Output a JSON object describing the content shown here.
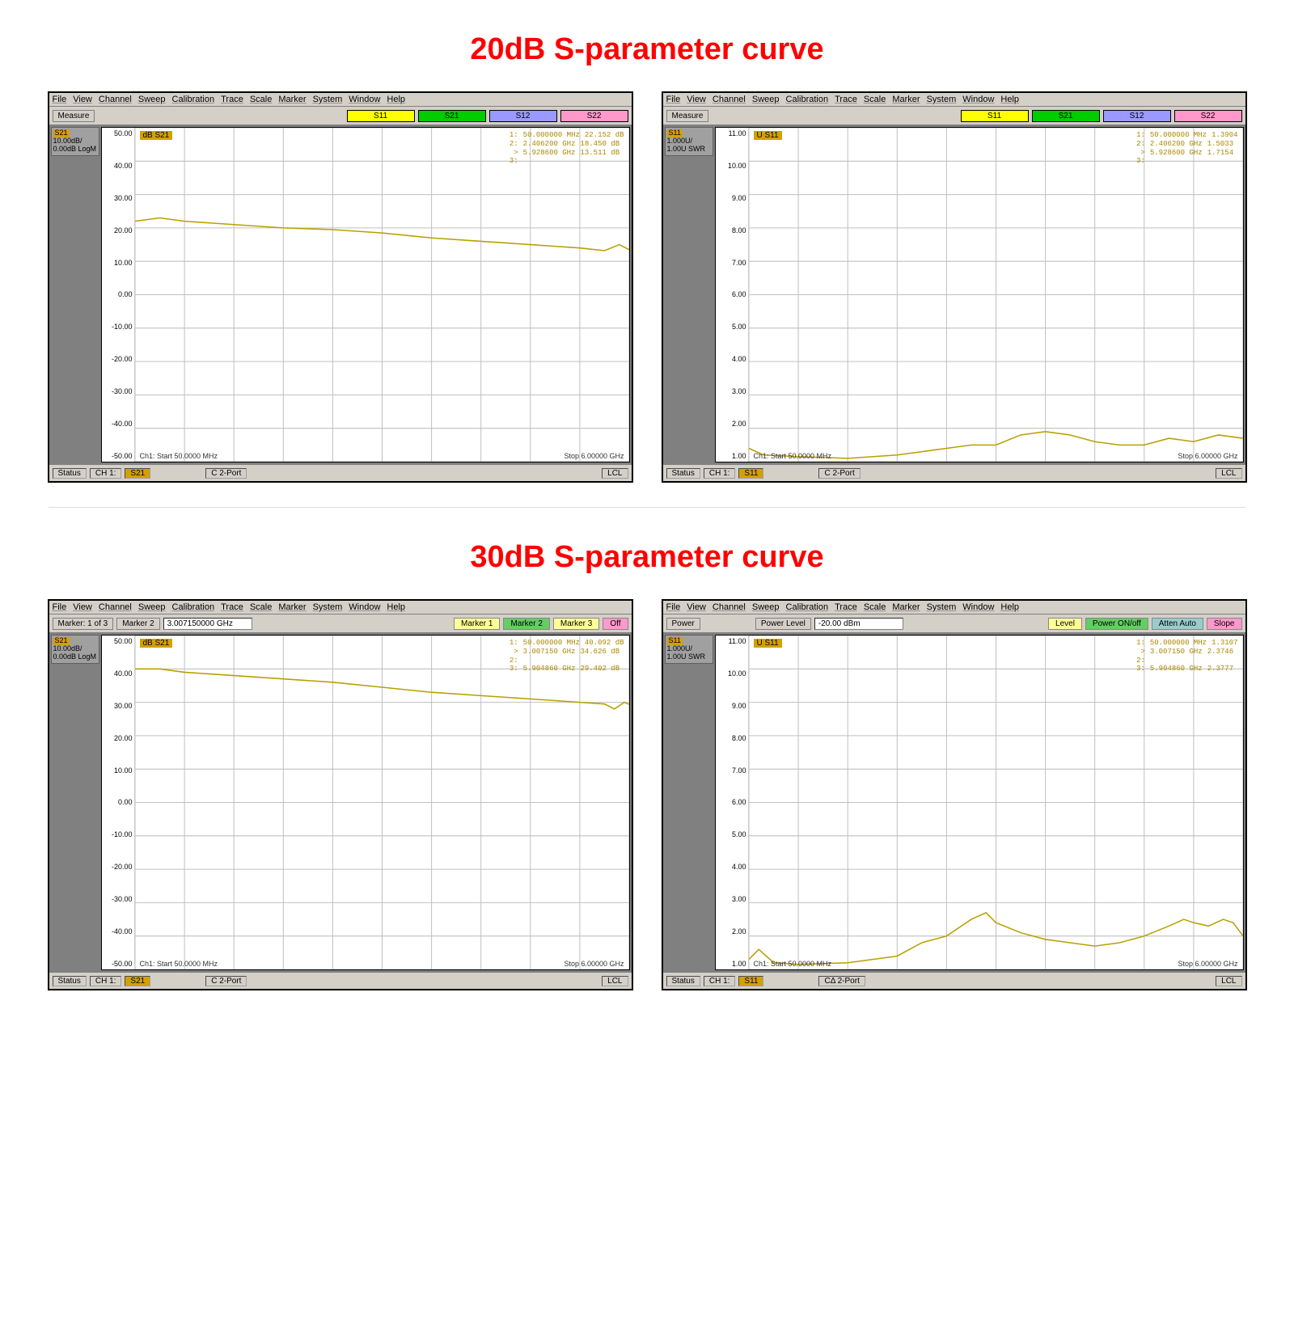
{
  "titles": {
    "section1": "20dB S-parameter curve",
    "section2": "30dB S-parameter curve"
  },
  "menu_items": [
    "File",
    "View",
    "Channel",
    "Sweep",
    "Calibration",
    "Trace",
    "Scale",
    "Marker",
    "System",
    "Window",
    "Help"
  ],
  "sparam_buttons": {
    "s11": "S11",
    "s21": "S21",
    "s12": "S12",
    "s22": "S22"
  },
  "colors": {
    "title": "#ff0000",
    "trace": "#b8a000",
    "grid": "#c0c0c0",
    "bg_window": "#c0c0c0",
    "bg_panel": "#808080",
    "s11": "#ffff00",
    "s21": "#00cc00",
    "s12": "#9999ff",
    "s22": "#ff99cc"
  },
  "panels": [
    {
      "id": "p1",
      "toolbar": {
        "type": "measure",
        "label": "Measure"
      },
      "trace_box": {
        "hdr": "S21",
        "l1": "10.00dB/",
        "l2": "0.00dB   LogM"
      },
      "plot_label": "dB S21",
      "y_ticks": [
        "50.00",
        "40.00",
        "30.00",
        "20.00",
        "10.00",
        "0.00",
        "-10.00",
        "-20.00",
        "-30.00",
        "-40.00",
        "-50.00"
      ],
      "ylim": [
        -50,
        50
      ],
      "x_start": "Ch1: Start  50.0000 MHz",
      "x_stop": "Stop  6.00000 GHz",
      "markers": [
        {
          "n": "1:",
          "f": "50.000000 MHz",
          "v": "22.152 dB"
        },
        {
          "n": "2:",
          "f": "2.406200 GHz",
          "v": "18.450 dB"
        },
        {
          "n": "> 3:",
          "f": "5.928600 GHz",
          "v": "13.511 dB"
        }
      ],
      "curve": [
        [
          0,
          22
        ],
        [
          0.05,
          23
        ],
        [
          0.1,
          22
        ],
        [
          0.2,
          21
        ],
        [
          0.3,
          20
        ],
        [
          0.4,
          19.5
        ],
        [
          0.5,
          18.5
        ],
        [
          0.6,
          17
        ],
        [
          0.7,
          16
        ],
        [
          0.8,
          15
        ],
        [
          0.85,
          14.5
        ],
        [
          0.9,
          14
        ],
        [
          0.95,
          13.2
        ],
        [
          0.98,
          15
        ],
        [
          1.0,
          13.5
        ]
      ],
      "status": {
        "ch": "CH 1:",
        "trace": "S21",
        "port": "C  2-Port",
        "lcl": "LCL"
      }
    },
    {
      "id": "p2",
      "toolbar": {
        "type": "measure",
        "label": "Measure"
      },
      "trace_box": {
        "hdr": "S11",
        "l1": "1.000U/",
        "l2": "1.00U   SWR"
      },
      "plot_label": "U S11",
      "y_ticks": [
        "11.00",
        "10.00",
        "9.00",
        "8.00",
        "7.00",
        "6.00",
        "5.00",
        "4.00",
        "3.00",
        "2.00",
        "1.00"
      ],
      "ylim": [
        1,
        11
      ],
      "x_start": "Ch1: Start  50.0000 MHz",
      "x_stop": "Stop  6.00000 GHz",
      "markers": [
        {
          "n": "1:",
          "f": "50.000000 MHz",
          "v": "1.3904"
        },
        {
          "n": "2:",
          "f": "2.406200 GHz",
          "v": "1.5033"
        },
        {
          "n": "> 3:",
          "f": "5.928600 GHz",
          "v": "1.7154"
        }
      ],
      "curve": [
        [
          0,
          1.4
        ],
        [
          0.03,
          1.2
        ],
        [
          0.1,
          1.15
        ],
        [
          0.2,
          1.1
        ],
        [
          0.3,
          1.2
        ],
        [
          0.35,
          1.3
        ],
        [
          0.4,
          1.4
        ],
        [
          0.45,
          1.5
        ],
        [
          0.5,
          1.5
        ],
        [
          0.55,
          1.8
        ],
        [
          0.6,
          1.9
        ],
        [
          0.65,
          1.8
        ],
        [
          0.7,
          1.6
        ],
        [
          0.75,
          1.5
        ],
        [
          0.8,
          1.5
        ],
        [
          0.85,
          1.7
        ],
        [
          0.9,
          1.6
        ],
        [
          0.95,
          1.8
        ],
        [
          1.0,
          1.7
        ]
      ],
      "status": {
        "ch": "CH 1:",
        "trace": "S11",
        "port": "C  2-Port",
        "lcl": "LCL"
      }
    },
    {
      "id": "p3",
      "toolbar": {
        "type": "marker",
        "label": "Marker: 1 of 3",
        "label2": "Marker 2",
        "input": "3.007150000 GHz",
        "btns": [
          "Marker 1",
          "Marker 2",
          "Marker 3",
          "Off"
        ]
      },
      "trace_box": {
        "hdr": "S21",
        "l1": "10.00dB/",
        "l2": "0.00dB   LogM"
      },
      "plot_label": "dB S21",
      "y_ticks": [
        "50.00",
        "40.00",
        "30.00",
        "20.00",
        "10.00",
        "0.00",
        "-10.00",
        "-20.00",
        "-30.00",
        "-40.00",
        "-50.00"
      ],
      "ylim": [
        -50,
        50
      ],
      "x_start": "Ch1: Start  50.0000 MHz",
      "x_stop": "Stop  6.00000 GHz",
      "markers": [
        {
          "n": "1:",
          "f": "50.000000 MHz",
          "v": "40.092 dB"
        },
        {
          "n": "> 2:",
          "f": "3.007150 GHz",
          "v": "34.626 dB"
        },
        {
          "n": "3:",
          "f": "5.904860 GHz",
          "v": "29.402 dB"
        }
      ],
      "curve": [
        [
          0,
          40
        ],
        [
          0.05,
          40
        ],
        [
          0.1,
          39
        ],
        [
          0.2,
          38
        ],
        [
          0.3,
          37
        ],
        [
          0.4,
          36
        ],
        [
          0.5,
          34.5
        ],
        [
          0.6,
          33
        ],
        [
          0.7,
          32
        ],
        [
          0.8,
          31
        ],
        [
          0.85,
          30.5
        ],
        [
          0.9,
          30
        ],
        [
          0.95,
          29.5
        ],
        [
          0.97,
          28
        ],
        [
          0.99,
          30
        ],
        [
          1.0,
          29.4
        ]
      ],
      "status": {
        "ch": "CH 1:",
        "trace": "S21",
        "port": "C  2-Port",
        "lcl": "LCL"
      }
    },
    {
      "id": "p4",
      "toolbar": {
        "type": "power",
        "label": "Power",
        "label2": "Power Level",
        "input": "-20.00 dBm",
        "btns": [
          "Level",
          "Power ON/off",
          "Atten Auto",
          "Slope"
        ]
      },
      "trace_box": {
        "hdr": "S11",
        "l1": "1.000U/",
        "l2": "1.00U   SWR"
      },
      "plot_label": "U S11",
      "y_ticks": [
        "11.00",
        "10.00",
        "9.00",
        "8.00",
        "7.00",
        "6.00",
        "5.00",
        "4.00",
        "3.00",
        "2.00",
        "1.00"
      ],
      "ylim": [
        1,
        11
      ],
      "x_start": "Ch1: Start  50.0000 MHz",
      "x_stop": "Stop  6.00000 GHz",
      "markers": [
        {
          "n": "1:",
          "f": "50.000000 MHz",
          "v": "1.3107"
        },
        {
          "n": "> 2:",
          "f": "3.007150 GHz",
          "v": "2.3746"
        },
        {
          "n": "3:",
          "f": "5.904860 GHz",
          "v": "2.3777"
        }
      ],
      "curve": [
        [
          0,
          1.3
        ],
        [
          0.02,
          1.6
        ],
        [
          0.05,
          1.2
        ],
        [
          0.1,
          1.15
        ],
        [
          0.2,
          1.2
        ],
        [
          0.3,
          1.4
        ],
        [
          0.35,
          1.8
        ],
        [
          0.4,
          2.0
        ],
        [
          0.45,
          2.5
        ],
        [
          0.48,
          2.7
        ],
        [
          0.5,
          2.4
        ],
        [
          0.55,
          2.1
        ],
        [
          0.6,
          1.9
        ],
        [
          0.65,
          1.8
        ],
        [
          0.7,
          1.7
        ],
        [
          0.75,
          1.8
        ],
        [
          0.8,
          2.0
        ],
        [
          0.85,
          2.3
        ],
        [
          0.88,
          2.5
        ],
        [
          0.9,
          2.4
        ],
        [
          0.93,
          2.3
        ],
        [
          0.96,
          2.5
        ],
        [
          0.98,
          2.4
        ],
        [
          1.0,
          2.0
        ]
      ],
      "status": {
        "ch": "CH 1:",
        "trace": "S11",
        "port": "CΔ 2-Port",
        "lcl": "LCL"
      }
    }
  ],
  "status_label": "Status"
}
